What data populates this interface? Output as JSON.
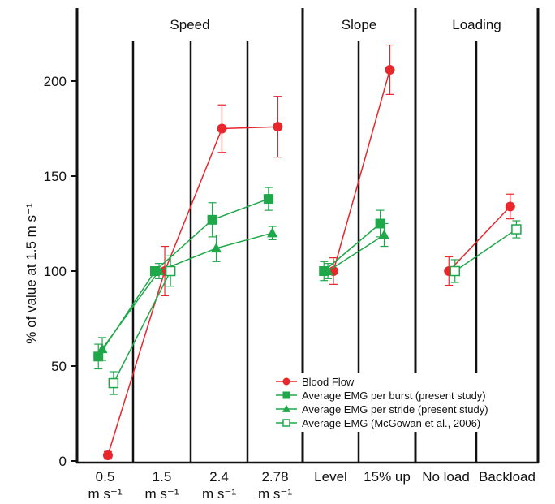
{
  "chart_data": {
    "type": "line",
    "ylabel": "% of value at 1.5 m s⁻¹",
    "ylim": [
      0,
      230
    ],
    "yticks": [
      0,
      50,
      100,
      150,
      200
    ],
    "grid": false,
    "legend_position": "lower-right",
    "groups": [
      {
        "label": "Speed",
        "start": 0,
        "end": 3
      },
      {
        "label": "Slope",
        "start": 4,
        "end": 5
      },
      {
        "label": "Loading",
        "start": 6,
        "end": 7
      }
    ],
    "categories": [
      {
        "line1": "0.5",
        "line2": "m s⁻¹"
      },
      {
        "line1": "1.5",
        "line2": "m s⁻¹"
      },
      {
        "line1": "2.4",
        "line2": "m s⁻¹"
      },
      {
        "line1": "2.78",
        "line2": "m s⁻¹"
      },
      {
        "line1": "Level",
        "line2": ""
      },
      {
        "line1": "15% up",
        "line2": ""
      },
      {
        "line1": "No load",
        "line2": ""
      },
      {
        "line1": "Backload",
        "line2": ""
      }
    ],
    "series": [
      {
        "name": "Blood Flow",
        "color": "#e8262b",
        "marker": "circle-filled",
        "offset": 0.05,
        "segments": [
          [
            0,
            1,
            2,
            3
          ],
          [
            4,
            5
          ],
          [
            6,
            7
          ]
        ],
        "points": [
          {
            "c": 0,
            "y": 3,
            "err": 2
          },
          {
            "c": 1,
            "y": 100,
            "err": 13
          },
          {
            "c": 2,
            "y": 175,
            "err": 12.5
          },
          {
            "c": 3,
            "y": 176,
            "err": 16
          },
          {
            "c": 4,
            "y": 100,
            "err": 7
          },
          {
            "c": 5,
            "y": 206,
            "err": 13
          },
          {
            "c": 6,
            "y": 100,
            "err": 7.5
          },
          {
            "c": 7,
            "y": 134,
            "err": 6.5
          }
        ]
      },
      {
        "name": "Average EMG per burst (present study)",
        "color": "#1fa84a",
        "marker": "square-filled",
        "offset": -0.12,
        "segments": [
          [
            0,
            1,
            2,
            3
          ],
          [
            4,
            5
          ]
        ],
        "points": [
          {
            "c": 0,
            "y": 55,
            "err": 6.5
          },
          {
            "c": 1,
            "y": 100,
            "err": 0
          },
          {
            "c": 2,
            "y": 127,
            "err": 9
          },
          {
            "c": 3,
            "y": 138,
            "err": 6
          },
          {
            "c": 4,
            "y": 100,
            "err": 5
          },
          {
            "c": 5,
            "y": 125,
            "err": 7
          }
        ]
      },
      {
        "name": "Average EMG per stride (present study)",
        "color": "#1fa84a",
        "marker": "triangle-filled",
        "offset": -0.05,
        "segments": [
          [
            0,
            1,
            2,
            3
          ],
          [
            4,
            5
          ]
        ],
        "points": [
          {
            "c": 0,
            "y": 59,
            "err": 6
          },
          {
            "c": 1,
            "y": 100,
            "err": 4
          },
          {
            "c": 2,
            "y": 112,
            "err": 7
          },
          {
            "c": 3,
            "y": 120,
            "err": 3.5
          },
          {
            "c": 4,
            "y": 100,
            "err": 4
          },
          {
            "c": 5,
            "y": 119,
            "err": 6
          }
        ]
      },
      {
        "name": "Average EMG (McGowan et al., 2006)",
        "color": "#1fa84a",
        "marker": "square-open",
        "offset": 0.15,
        "segments": [
          [
            0,
            1
          ],
          [
            6,
            7
          ]
        ],
        "points": [
          {
            "c": 0,
            "y": 41,
            "err": 6
          },
          {
            "c": 1,
            "y": 100,
            "err": 8
          },
          {
            "c": 6,
            "y": 100,
            "err": 6
          },
          {
            "c": 7,
            "y": 122,
            "err": 4.5
          }
        ]
      }
    ]
  }
}
